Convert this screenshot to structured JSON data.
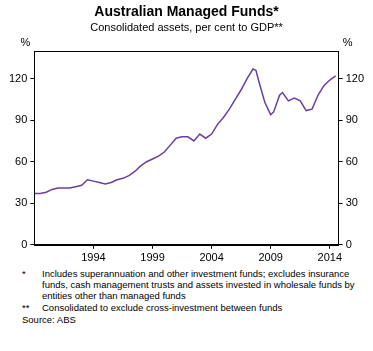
{
  "chart_data": {
    "type": "line",
    "title": "Australian Managed Funds*",
    "subtitle": "Consolidated assets, per cent to GDP**",
    "y_label": "%",
    "y2_label": "%",
    "x": [
      1989.0,
      1989.5,
      1990.0,
      1990.5,
      1991.0,
      1991.5,
      1992.0,
      1992.5,
      1993.0,
      1993.5,
      1994.0,
      1994.5,
      1995.0,
      1995.5,
      1996.0,
      1996.5,
      1997.0,
      1997.5,
      1998.0,
      1998.5,
      1999.0,
      1999.5,
      2000.0,
      2000.5,
      2001.0,
      2001.5,
      2002.0,
      2002.5,
      2003.0,
      2003.5,
      2004.0,
      2004.5,
      2005.0,
      2005.5,
      2006.0,
      2006.5,
      2007.0,
      2007.5,
      2007.75,
      2008.0,
      2008.5,
      2009.0,
      2009.25,
      2009.75,
      2010.0,
      2010.5,
      2011.0,
      2011.5,
      2012.0,
      2012.5,
      2013.0,
      2013.5,
      2014.0,
      2014.5
    ],
    "series": [
      {
        "name": "Consolidated assets",
        "color": "#6b3fa0",
        "values": [
          37,
          37,
          38,
          40,
          41,
          41,
          41,
          42,
          43,
          47,
          46,
          45,
          44,
          45,
          47,
          48,
          50,
          53,
          57,
          60,
          62,
          64,
          67,
          72,
          77,
          78,
          78,
          75,
          80,
          77,
          80,
          87,
          92,
          98,
          105,
          112,
          120,
          127,
          126,
          118,
          103,
          94,
          96,
          108,
          110,
          104,
          106,
          104,
          97,
          98,
          108,
          115,
          119,
          122
        ]
      }
    ],
    "xlim": [
      1989,
      2014.75
    ],
    "xticks": [
      1994,
      1999,
      2004,
      2009,
      2014
    ],
    "ylim": [
      0,
      140
    ],
    "yticks": [
      0,
      30,
      60,
      90,
      120
    ],
    "y2lim": [
      0,
      140
    ],
    "y2ticks": [
      0,
      30,
      60,
      90,
      120
    ],
    "grid": false,
    "footnotes": [
      {
        "symbol": "*",
        "text": "Includes superannuation and other investment funds; excludes insurance funds, cash management trusts and assets invested in wholesale funds by entities other than managed funds"
      },
      {
        "symbol": "**",
        "text": "Consolidated to exclude cross-investment between funds"
      }
    ],
    "source": "Source: ABS"
  }
}
